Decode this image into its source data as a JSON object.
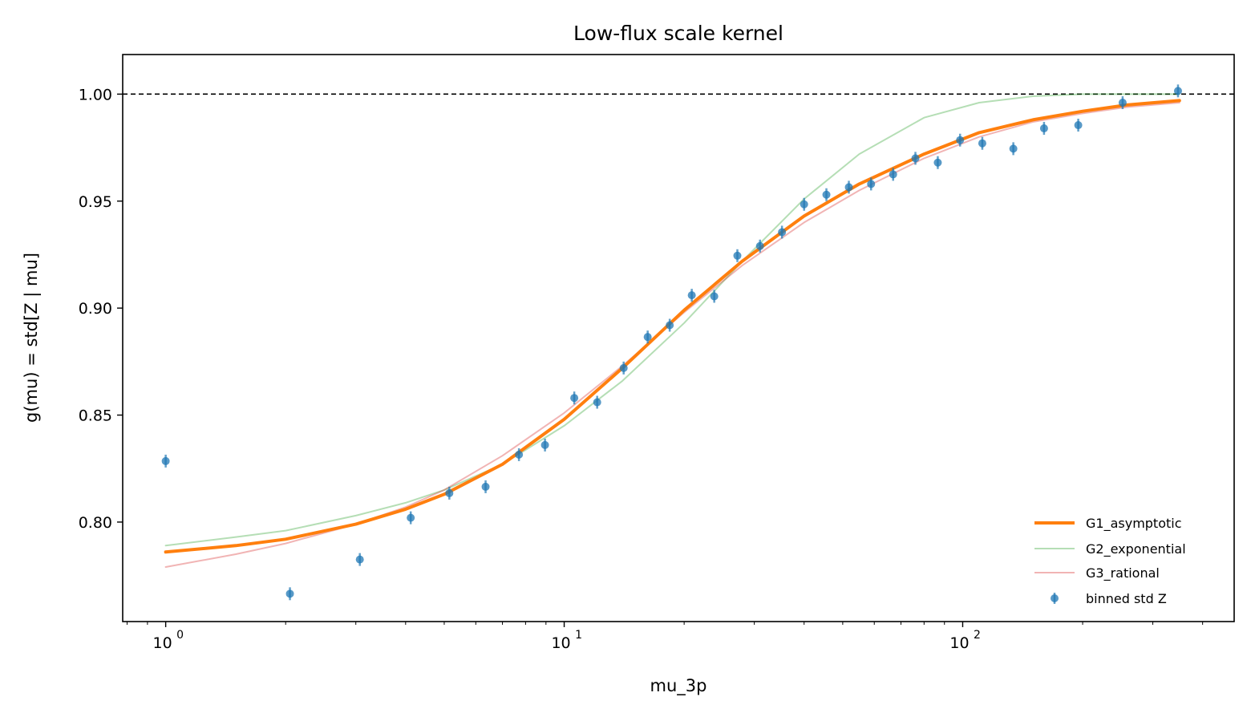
{
  "chart_data": {
    "type": "scatter",
    "title": "Low-flux scale kernel",
    "xlabel": "mu_3p",
    "ylabel": "g(mu) = std[Z | mu]",
    "xscale": "log",
    "xlim": [
      0.78,
      480
    ],
    "ylim": [
      0.7535,
      1.0185
    ],
    "yticks": [
      0.8,
      0.85,
      0.9,
      0.95,
      1.0
    ],
    "ytick_labels": [
      "0.80",
      "0.85",
      "0.90",
      "0.95",
      "1.00"
    ],
    "xticks": [
      1,
      10,
      100
    ],
    "xtick_labels": [
      {
        "base": "10",
        "exp": "0"
      },
      {
        "base": "10",
        "exp": "1"
      },
      {
        "base": "10",
        "exp": "2"
      }
    ],
    "reference_line": {
      "y": 1.0,
      "style": "dashed",
      "color": "#000000"
    },
    "grid": false,
    "legend_position": "lower right",
    "series": [
      {
        "name": "G1_asymptotic",
        "kind": "line",
        "color": "#ff7f0e",
        "width": 4,
        "opacity": 1.0,
        "x": [
          1,
          1.5,
          2,
          3,
          4,
          5,
          7,
          10,
          14,
          20,
          28,
          40,
          55,
          80,
          110,
          150,
          200,
          260,
          350
        ],
        "y": [
          0.786,
          0.789,
          0.792,
          0.799,
          0.806,
          0.813,
          0.827,
          0.848,
          0.872,
          0.899,
          0.922,
          0.943,
          0.958,
          0.972,
          0.982,
          0.988,
          0.992,
          0.995,
          0.997
        ]
      },
      {
        "name": "G2_exponential",
        "kind": "line",
        "color": "#2ca02c",
        "width": 2,
        "opacity": 0.35,
        "x": [
          1,
          1.5,
          2,
          3,
          4,
          5,
          7,
          10,
          14,
          20,
          28,
          40,
          55,
          80,
          110,
          150,
          200,
          260,
          350
        ],
        "y": [
          0.789,
          0.793,
          0.796,
          0.803,
          0.809,
          0.815,
          0.827,
          0.845,
          0.866,
          0.893,
          0.922,
          0.951,
          0.972,
          0.989,
          0.996,
          0.999,
          1.0,
          1.0,
          1.0
        ]
      },
      {
        "name": "G3_rational",
        "kind": "line",
        "color": "#d62728",
        "width": 2,
        "opacity": 0.35,
        "x": [
          1,
          1.5,
          2,
          3,
          4,
          5,
          7,
          10,
          14,
          20,
          28,
          40,
          55,
          80,
          110,
          150,
          200,
          260,
          350
        ],
        "y": [
          0.779,
          0.785,
          0.79,
          0.799,
          0.807,
          0.815,
          0.831,
          0.851,
          0.873,
          0.898,
          0.92,
          0.94,
          0.955,
          0.97,
          0.98,
          0.987,
          0.991,
          0.994,
          0.996
        ]
      },
      {
        "name": "binned std Z",
        "kind": "errorbar",
        "color": "#1f77b4",
        "x": [
          1.0,
          2.05,
          3.07,
          4.12,
          5.15,
          6.35,
          7.7,
          8.95,
          10.6,
          12.1,
          14.1,
          16.2,
          18.4,
          20.9,
          23.8,
          27.2,
          31.0,
          35.2,
          40.0,
          45.5,
          51.8,
          58.9,
          66.9,
          76.1,
          86.6,
          98.5,
          112,
          134,
          160,
          195,
          252,
          347
        ],
        "y": [
          0.8285,
          0.7665,
          0.7825,
          0.802,
          0.8135,
          0.8165,
          0.8315,
          0.836,
          0.858,
          0.856,
          0.872,
          0.8865,
          0.892,
          0.906,
          0.9055,
          0.9245,
          0.929,
          0.9355,
          0.9485,
          0.953,
          0.9565,
          0.958,
          0.9625,
          0.97,
          0.968,
          0.9785,
          0.977,
          0.9745,
          0.984,
          0.9855,
          0.996,
          1.0015
        ],
        "yerr": 0.003
      }
    ]
  }
}
